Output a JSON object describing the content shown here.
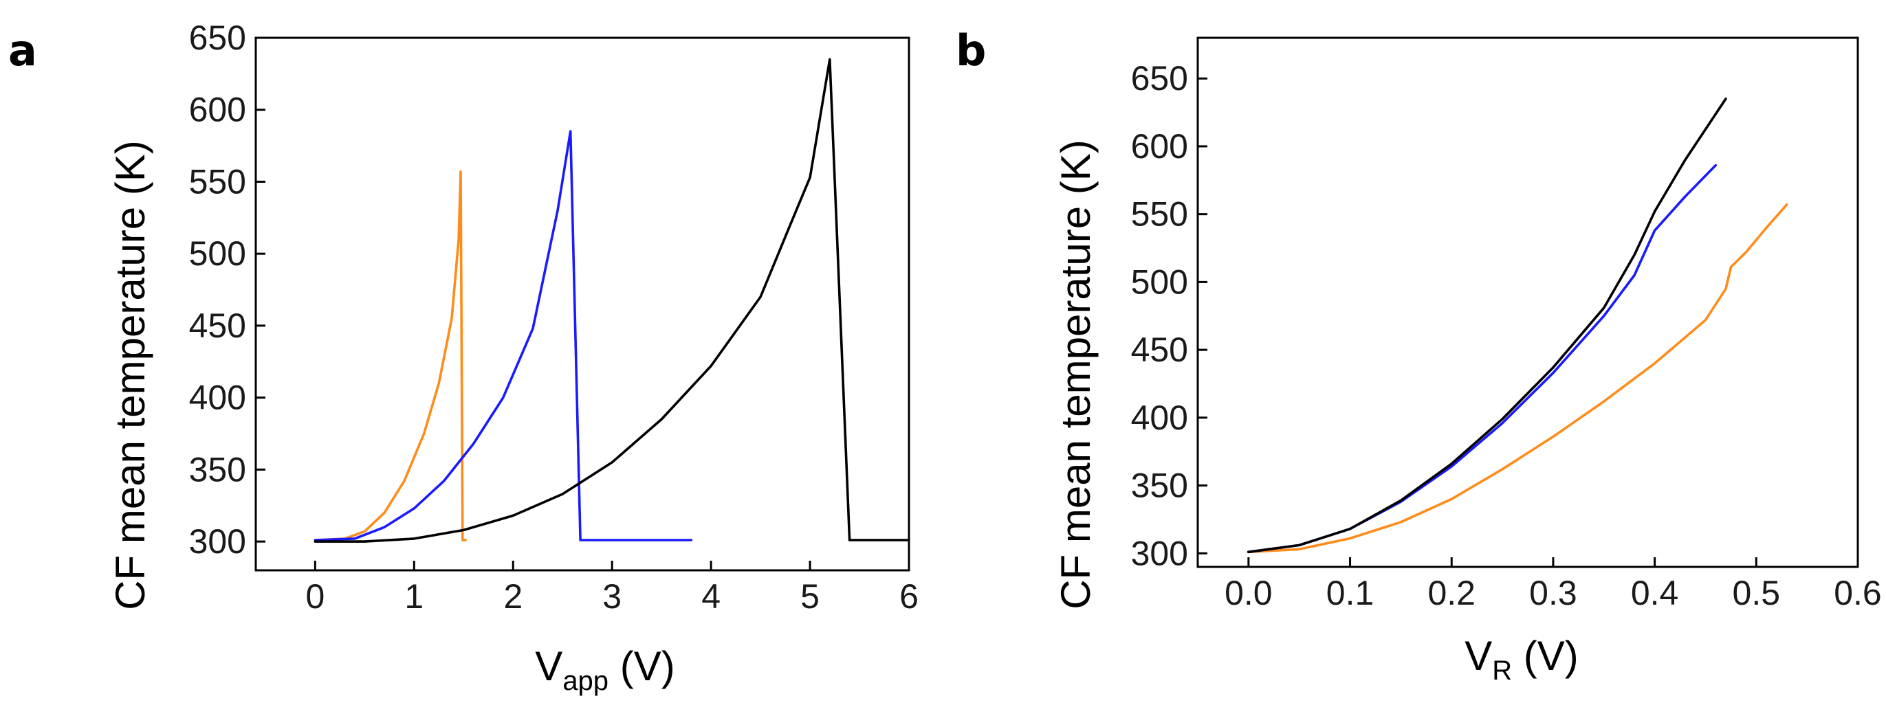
{
  "colors": {
    "orange": "#ff8c1a",
    "blue": "#1a1aff",
    "black": "#000000"
  },
  "chart_data": [
    {
      "type": "line",
      "panel": "a",
      "xlabel_main": "V",
      "xlabel_sub": "app",
      "xlabel_unit": " (V)",
      "ylabel": "CF mean temperature (K)",
      "xlim": [
        -0.6,
        6.0
      ],
      "ylim": [
        280,
        650
      ],
      "xticks": [
        0,
        1,
        2,
        3,
        4,
        5,
        6
      ],
      "yticks": [
        300,
        350,
        400,
        450,
        500,
        550,
        600,
        650
      ],
      "series": [
        {
          "name": "orange",
          "color": "#ff8c1a",
          "points": [
            [
              0,
              301
            ],
            [
              0.3,
              302
            ],
            [
              0.5,
              307
            ],
            [
              0.7,
              320
            ],
            [
              0.9,
              342
            ],
            [
              1.1,
              375
            ],
            [
              1.25,
              410
            ],
            [
              1.38,
              455
            ],
            [
              1.45,
              510
            ],
            [
              1.47,
              557
            ],
            [
              1.48,
              430
            ],
            [
              1.49,
              301
            ],
            [
              1.52,
              301
            ]
          ]
        },
        {
          "name": "blue",
          "color": "#1a1aff",
          "points": [
            [
              0,
              301
            ],
            [
              0.4,
              302
            ],
            [
              0.7,
              310
            ],
            [
              1.0,
              323
            ],
            [
              1.3,
              342
            ],
            [
              1.6,
              368
            ],
            [
              1.9,
              400
            ],
            [
              2.2,
              448
            ],
            [
              2.45,
              530
            ],
            [
              2.58,
              585
            ],
            [
              2.68,
              301
            ],
            [
              3.0,
              301
            ],
            [
              3.8,
              301
            ]
          ]
        },
        {
          "name": "black",
          "color": "#000000",
          "points": [
            [
              0,
              300
            ],
            [
              0.5,
              300
            ],
            [
              1.0,
              302
            ],
            [
              1.5,
              308
            ],
            [
              2.0,
              318
            ],
            [
              2.5,
              333
            ],
            [
              3.0,
              355
            ],
            [
              3.5,
              385
            ],
            [
              4.0,
              422
            ],
            [
              4.5,
              470
            ],
            [
              4.8,
              520
            ],
            [
              5.0,
              553
            ],
            [
              5.2,
              635
            ],
            [
              5.4,
              301
            ],
            [
              5.7,
              301
            ],
            [
              6.0,
              301
            ]
          ]
        }
      ]
    },
    {
      "type": "line",
      "panel": "b",
      "xlabel_main": "V",
      "xlabel_sub": "R",
      "xlabel_unit": " (V)",
      "ylabel": "CF mean temperature (K)",
      "xlim": [
        -0.05,
        0.6
      ],
      "ylim": [
        290,
        680
      ],
      "xticks": [
        "0.0",
        "0.1",
        "0.2",
        "0.3",
        "0.4",
        "0.5",
        "0.6"
      ],
      "yticks": [
        300,
        350,
        400,
        450,
        500,
        550,
        600,
        650
      ],
      "series": [
        {
          "name": "orange",
          "color": "#ff8c1a",
          "points": [
            [
              0,
              301
            ],
            [
              0.05,
              303
            ],
            [
              0.1,
              311
            ],
            [
              0.15,
              323
            ],
            [
              0.2,
              340
            ],
            [
              0.25,
              362
            ],
            [
              0.3,
              386
            ],
            [
              0.35,
              412
            ],
            [
              0.4,
              440
            ],
            [
              0.45,
              472
            ],
            [
              0.47,
              495
            ],
            [
              0.475,
              511
            ],
            [
              0.49,
              522
            ],
            [
              0.51,
              540
            ],
            [
              0.53,
              557
            ]
          ]
        },
        {
          "name": "blue",
          "color": "#1a1aff",
          "points": [
            [
              0,
              301
            ],
            [
              0.05,
              306
            ],
            [
              0.1,
              318
            ],
            [
              0.15,
              338
            ],
            [
              0.2,
              364
            ],
            [
              0.25,
              396
            ],
            [
              0.3,
              433
            ],
            [
              0.35,
              475
            ],
            [
              0.38,
              505
            ],
            [
              0.4,
              538
            ],
            [
              0.43,
              563
            ],
            [
              0.46,
              586
            ]
          ]
        },
        {
          "name": "black",
          "color": "#000000",
          "points": [
            [
              0,
              301
            ],
            [
              0.05,
              306
            ],
            [
              0.1,
              318
            ],
            [
              0.15,
              339
            ],
            [
              0.2,
              366
            ],
            [
              0.25,
              399
            ],
            [
              0.3,
              437
            ],
            [
              0.35,
              481
            ],
            [
              0.38,
              520
            ],
            [
              0.4,
              552
            ],
            [
              0.43,
              590
            ],
            [
              0.47,
              635
            ]
          ]
        }
      ]
    }
  ]
}
